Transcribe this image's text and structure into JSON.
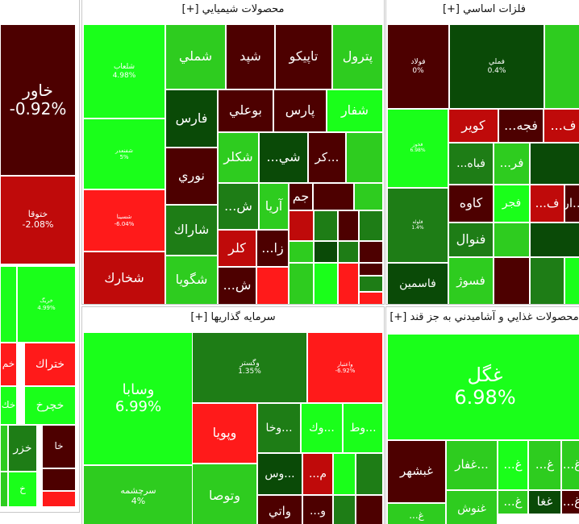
{
  "chart_data": {
    "type": "treemap",
    "colors": {
      "strong_green": "#1aff1a",
      "green": "#2ecc1f",
      "mid_green": "#1e7d16",
      "dark_green": "#0a4a07",
      "dark_red": "#4d0000",
      "red": "#bf0a0a",
      "bright_red": "#ff1a1a"
    },
    "groups": [
      {
        "name": "partial-left",
        "title": "",
        "tiles": [
          {
            "label": "خاور",
            "change": "-0.92%",
            "color": "dark_red"
          },
          {
            "label": "ختوقا",
            "change": "-2.08%",
            "color": "red"
          },
          {
            "label": "",
            "change": "",
            "color": "strong_green"
          },
          {
            "label": "خريگ",
            "change": "4.99%",
            "color": "strong_green"
          },
          {
            "label": "خم",
            "change": "",
            "color": "bright_red"
          },
          {
            "label": "ختراك",
            "change": "",
            "color": "bright_red"
          },
          {
            "label": "خك",
            "change": "",
            "color": "strong_green"
          },
          {
            "label": "خچرخ",
            "change": "",
            "color": "strong_green"
          },
          {
            "label": "",
            "change": "",
            "color": "green"
          },
          {
            "label": "خزر",
            "change": "",
            "color": "mid_green"
          },
          {
            "label": "خا",
            "change": "",
            "color": "dark_red"
          },
          {
            "label": "",
            "change": "",
            "color": "green"
          },
          {
            "label": "خ",
            "change": "",
            "color": "strong_green"
          },
          {
            "label": "",
            "change": "",
            "color": "dark_red"
          },
          {
            "label": "",
            "change": "",
            "color": "bright_red"
          }
        ]
      },
      {
        "name": "chemical",
        "title": "محصولات شيميايي [+]",
        "tiles": [
          {
            "label": "شلعاب",
            "change": "4.98%",
            "color": "strong_green"
          },
          {
            "label": "شفنعدر",
            "change": "5%",
            "color": "strong_green"
          },
          {
            "label": "شسينا",
            "change": "-6.04%",
            "color": "bright_red"
          },
          {
            "label": "شخارك",
            "change": "",
            "color": "red"
          },
          {
            "label": "شملي",
            "change": "",
            "color": "green"
          },
          {
            "label": "شپد",
            "change": "",
            "color": "dark_red"
          },
          {
            "label": "تاپيكو",
            "change": "",
            "color": "dark_red"
          },
          {
            "label": "پترول",
            "change": "",
            "color": "green"
          },
          {
            "label": "فارس",
            "change": "",
            "color": "dark_green"
          },
          {
            "label": "بوعلي",
            "change": "",
            "color": "dark_red"
          },
          {
            "label": "پارس",
            "change": "",
            "color": "dark_red"
          },
          {
            "label": "شفار",
            "change": "",
            "color": "strong_green"
          },
          {
            "label": "نوري",
            "change": "",
            "color": "dark_red"
          },
          {
            "label": "شكلر",
            "change": "",
            "color": "green"
          },
          {
            "label": "شي...",
            "change": "",
            "color": "dark_green"
          },
          {
            "label": "...كر",
            "change": "",
            "color": "dark_red"
          },
          {
            "label": "",
            "change": "",
            "color": "green"
          },
          {
            "label": "شاراك",
            "change": "",
            "color": "mid_green"
          },
          {
            "label": "ش...",
            "change": "",
            "color": "mid_green"
          },
          {
            "label": "آريا",
            "change": "",
            "color": "green"
          },
          {
            "label": "جم",
            "change": "",
            "color": "dark_red"
          },
          {
            "label": "",
            "change": "",
            "color": "dark_red"
          },
          {
            "label": "",
            "change": "",
            "color": "green"
          },
          {
            "label": "شگويا",
            "change": "",
            "color": "green"
          },
          {
            "label": "كلر",
            "change": "",
            "color": "red"
          },
          {
            "label": "زا...",
            "change": "",
            "color": "dark_red"
          },
          {
            "label": "ش...",
            "change": "",
            "color": "dark_red"
          },
          {
            "label": "",
            "change": "",
            "color": "bright_red"
          },
          {
            "label": "",
            "change": "",
            "color": "red"
          },
          {
            "label": "",
            "change": "",
            "color": "mid_green"
          },
          {
            "label": "",
            "change": "",
            "color": "dark_red"
          },
          {
            "label": "",
            "change": "",
            "color": "mid_green"
          },
          {
            "label": "",
            "change": "",
            "color": "green"
          },
          {
            "label": "",
            "change": "",
            "color": "dark_green"
          },
          {
            "label": "",
            "change": "",
            "color": "mid_green"
          },
          {
            "label": "",
            "change": "",
            "color": "dark_red"
          },
          {
            "label": "",
            "change": "",
            "color": "green"
          },
          {
            "label": "",
            "change": "",
            "color": "strong_green"
          },
          {
            "label": "",
            "change": "",
            "color": "bright_red"
          },
          {
            "label": "",
            "change": "",
            "color": "dark_red"
          },
          {
            "label": "",
            "change": "",
            "color": "mid_green"
          },
          {
            "label": "",
            "change": "",
            "color": "bright_red"
          }
        ]
      },
      {
        "name": "basic-metals",
        "title": "فلزات اساسي [+]",
        "tiles": [
          {
            "label": "فولاد",
            "change": "0%",
            "color": "dark_red"
          },
          {
            "label": "فملي",
            "change": "0.4%",
            "color": "dark_green"
          },
          {
            "label": "",
            "change": "",
            "color": "green"
          },
          {
            "label": "فخوز",
            "change": "6.98%",
            "color": "strong_green"
          },
          {
            "label": "كوير",
            "change": "",
            "color": "red"
          },
          {
            "label": "فجه...",
            "change": "",
            "color": "dark_red"
          },
          {
            "label": "ف...",
            "change": "",
            "color": "red"
          },
          {
            "label": "فباه...",
            "change": "",
            "color": "mid_green"
          },
          {
            "label": "فر...",
            "change": "",
            "color": "green"
          },
          {
            "label": "",
            "change": "",
            "color": "dark_green"
          },
          {
            "label": "فلوله",
            "change": "1.4%",
            "color": "mid_green"
          },
          {
            "label": "كاوه",
            "change": "",
            "color": "dark_red"
          },
          {
            "label": "فجر",
            "change": "",
            "color": "strong_green"
          },
          {
            "label": "ف...",
            "change": "",
            "color": "red"
          },
          {
            "label": "...ار",
            "change": "",
            "color": "dark_red"
          },
          {
            "label": "فنوال",
            "change": "",
            "color": "mid_green"
          },
          {
            "label": "",
            "change": "",
            "color": "green"
          },
          {
            "label": "",
            "change": "",
            "color": "dark_green"
          },
          {
            "label": "فاسمين",
            "change": "",
            "color": "dark_green"
          },
          {
            "label": "فسوژ",
            "change": "",
            "color": "green"
          },
          {
            "label": "",
            "change": "",
            "color": "dark_red"
          },
          {
            "label": "",
            "change": "",
            "color": "mid_green"
          },
          {
            "label": "",
            "change": "",
            "color": "strong_green"
          }
        ]
      },
      {
        "name": "investment",
        "title": "سرمايه گذاريها [+]",
        "tiles": [
          {
            "label": "وسابا",
            "change": "6.99%",
            "color": "strong_green"
          },
          {
            "label": "سرچشمه",
            "change": "4%",
            "color": "green"
          },
          {
            "label": "وگستر",
            "change": "1.35%",
            "color": "mid_green"
          },
          {
            "label": "واعتبار",
            "change": "-6.92%",
            "color": "bright_red"
          },
          {
            "label": "وپويا",
            "change": "",
            "color": "bright_red"
          },
          {
            "label": "وتوصا",
            "change": "",
            "color": "green"
          },
          {
            "label": "...وخا",
            "change": "",
            "color": "mid_green"
          },
          {
            "label": "...وك",
            "change": "",
            "color": "strong_green"
          },
          {
            "label": "...وط",
            "change": "",
            "color": "strong_green"
          },
          {
            "label": "...وس",
            "change": "",
            "color": "dark_green"
          },
          {
            "label": "م...",
            "change": "",
            "color": "red"
          },
          {
            "label": "",
            "change": "",
            "color": "strong_green"
          },
          {
            "label": "",
            "change": "",
            "color": "mid_green"
          },
          {
            "label": "واتي",
            "change": "",
            "color": "dark_red"
          },
          {
            "label": "و...",
            "change": "",
            "color": "dark_red"
          },
          {
            "label": "",
            "change": "",
            "color": "mid_green"
          },
          {
            "label": "",
            "change": "",
            "color": "dark_red"
          }
        ]
      },
      {
        "name": "food",
        "title": "محصولات غذايي و آشاميدني به جز قند [+]",
        "tiles": [
          {
            "label": "غگل",
            "change": "6.98%",
            "color": "strong_green"
          },
          {
            "label": "غبشهر",
            "change": "",
            "color": "dark_red"
          },
          {
            "label": "...غفار",
            "change": "",
            "color": "green"
          },
          {
            "label": "غ...",
            "change": "",
            "color": "strong_green"
          },
          {
            "label": "غ...",
            "change": "",
            "color": "green"
          },
          {
            "label": "غ...",
            "change": "",
            "color": "green"
          },
          {
            "label": "غ...",
            "change": "",
            "color": "green"
          },
          {
            "label": "غغا",
            "change": "",
            "color": "dark_green"
          },
          {
            "label": "غ...",
            "change": "",
            "color": "dark_red"
          },
          {
            "label": "غ...",
            "change": "",
            "color": "green"
          },
          {
            "label": "غنوش",
            "change": "",
            "color": "green"
          }
        ]
      }
    ]
  }
}
